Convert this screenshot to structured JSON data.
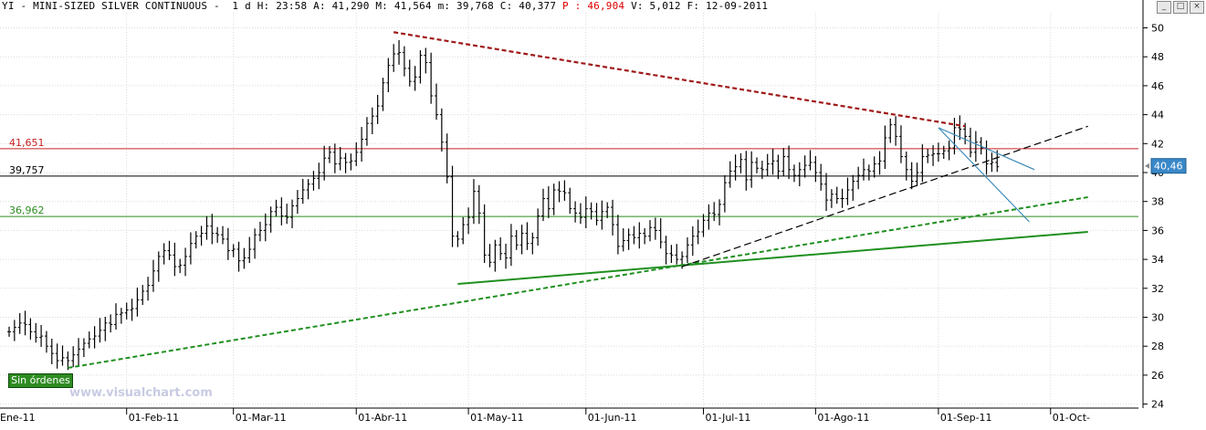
{
  "header": {
    "text": "YI - MINI-SIZED SILVER CONTINUOUS -  1 d H: 23:58 A: 41,290 M: 41,564 m: 39,768 C: 40,377 ",
    "p_label": "P : 46,904",
    "tail": " V: 5,012 F: 12-09-2011"
  },
  "window_buttons": [
    "_",
    "□",
    "×"
  ],
  "sin_ordenes": "Sin órdenes",
  "watermark": "www.visualchart.com",
  "colors": {
    "candle": "#000000",
    "resistance_dashed": "#a01818",
    "level_41651": "#c82020",
    "level_39757": "#000000",
    "level_36962": "#2e8b22",
    "trend_green": "#1f8f1f",
    "trend_black": "#000000",
    "fan_blue": "#3a88b8",
    "price_tag": "#3a88c8"
  },
  "chart_data": {
    "type": "candlestick",
    "title": "YI - MINI-SIZED SILVER CONTINUOUS",
    "timeframe": "1 d",
    "ylim": [
      24,
      51
    ],
    "y_ticks": [
      "50",
      "48",
      "46",
      "44",
      "42",
      "40",
      "38",
      "36",
      "34",
      "32",
      "30",
      "28",
      "26",
      "24"
    ],
    "x_labels": [
      {
        "label": "Ene-11",
        "day": -3
      },
      {
        "label": "01-Feb-11",
        "day": 22
      },
      {
        "label": "01-Mar-11",
        "day": 42
      },
      {
        "label": "01-Abr-11",
        "day": 65
      },
      {
        "label": "01-May-11",
        "day": 86
      },
      {
        "label": "01-Jun-11",
        "day": 108
      },
      {
        "label": "01-Jul-11",
        "day": 130
      },
      {
        "label": "01-Ago-11",
        "day": 151
      },
      {
        "label": "01-Sep-11",
        "day": 174
      },
      {
        "label": "01-Oct-",
        "day": 195
      }
    ],
    "closes": [
      29.0,
      29.3,
      29.6,
      29.5,
      29.0,
      28.6,
      28.7,
      28.0,
      27.5,
      27.0,
      27.2,
      27.0,
      27.4,
      27.8,
      28.2,
      28.5,
      28.7,
      29.1,
      29.6,
      29.5,
      30.2,
      30.3,
      30.5,
      30.6,
      31.2,
      31.8,
      32.2,
      33.2,
      34.2,
      34.6,
      34.3,
      33.5,
      33.6,
      34.2,
      35.1,
      35.6,
      35.8,
      36.3,
      35.8,
      35.7,
      35.4,
      34.6,
      34.7,
      33.9,
      34.1,
      34.7,
      35.7,
      36.0,
      36.4,
      37.3,
      37.6,
      37.0,
      36.9,
      37.7,
      38.2,
      38.8,
      39.2,
      39.6,
      40.0,
      41.0,
      41.4,
      40.6,
      41.0,
      40.7,
      40.8,
      41.4,
      42.3,
      43.4,
      43.9,
      44.6,
      46.2,
      47.4,
      48.2,
      48.3,
      47.2,
      46.3,
      46.6,
      48.1,
      47.6,
      45.3,
      44.0,
      42.1,
      39.7,
      35.6,
      35.4,
      36.4,
      36.9,
      38.7,
      37.2,
      34.3,
      33.8,
      35.0,
      34.4,
      34.1,
      35.6,
      35.0,
      35.8,
      35.1,
      35.5,
      37.0,
      38.2,
      37.5,
      38.8,
      38.7,
      38.6,
      37.5,
      37.2,
      36.9,
      37.5,
      37.3,
      36.7,
      37.3,
      37.6,
      36.4,
      34.9,
      35.3,
      35.7,
      35.5,
      35.8,
      35.6,
      36.2,
      36.0,
      35.2,
      34.4,
      34.3,
      34.0,
      34.2,
      35.0,
      35.6,
      35.9,
      36.7,
      37.2,
      37.1,
      37.8,
      39.3,
      40.1,
      40.4,
      40.9,
      39.5,
      40.7,
      40.3,
      40.2,
      40.6,
      40.8,
      40.1,
      41.1,
      40.2,
      39.8,
      40.2,
      40.5,
      40.7,
      40.0,
      39.2,
      38.1,
      38.5,
      38.2,
      38.2,
      38.8,
      39.4,
      39.8,
      40.2,
      40.1,
      40.6,
      40.8,
      42.4,
      43.3,
      42.5,
      41.1,
      40.2,
      39.4,
      40.0,
      41.1,
      41.2,
      41.3,
      41.3,
      41.5,
      41.7,
      43.1,
      43.0,
      42.5,
      41.4,
      42.1,
      41.7,
      40.6,
      40.7,
      40.4
    ],
    "horizontal_levels": [
      {
        "label": "41,651",
        "value": 41.651,
        "color": "#c82020"
      },
      {
        "label": "39,757",
        "value": 39.757,
        "color": "#000000"
      },
      {
        "label": "36,962",
        "value": 36.962,
        "color": "#2e8b22"
      }
    ],
    "trendlines": [
      {
        "name": "resistance",
        "style": "dashed",
        "color": "#a01818",
        "from": [
          72,
          49.7
        ],
        "to": [
          179,
          43.2
        ]
      },
      {
        "name": "long-support",
        "style": "dashed",
        "color": "#1f8f1f",
        "from": [
          11,
          26.5
        ],
        "to": [
          202,
          38.3
        ]
      },
      {
        "name": "mid-support",
        "style": "solid",
        "color": "#1f8f1f",
        "from": [
          84,
          32.3
        ],
        "to": [
          202,
          35.9
        ]
      },
      {
        "name": "uptrend",
        "style": "dashed",
        "color": "#000000",
        "from": [
          126,
          33.5
        ],
        "to": [
          202,
          43.2
        ]
      },
      {
        "name": "fan-1",
        "style": "solid",
        "color": "#3a88b8",
        "from": [
          174,
          43.1
        ],
        "to": [
          192,
          40.2
        ]
      },
      {
        "name": "fan-2",
        "style": "solid",
        "color": "#3a88b8",
        "from": [
          174,
          43.1
        ],
        "to": [
          191,
          36.6
        ]
      }
    ],
    "last_price_tag": "40,46",
    "last_price_value": 40.46
  }
}
